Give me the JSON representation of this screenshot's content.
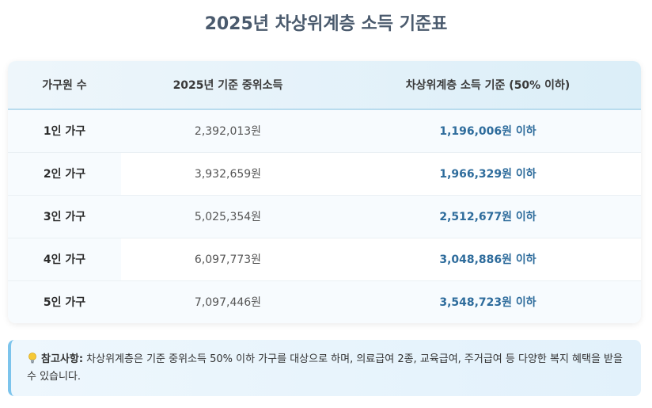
{
  "title": "2025년 차상위계층 소득 기준표",
  "table": {
    "headers": [
      "가구원 수",
      "2025년 기준 중위소득",
      "차상위계층 소득 기준 (50% 이하)"
    ],
    "rows": [
      {
        "household": "1인 가구",
        "median": "2,392,013원",
        "standard": "1,196,006원 이하"
      },
      {
        "household": "2인 가구",
        "median": "3,932,659원",
        "standard": "1,966,329원 이하"
      },
      {
        "household": "3인 가구",
        "median": "5,025,354원",
        "standard": "2,512,677원 이하"
      },
      {
        "household": "4인 가구",
        "median": "6,097,773원",
        "standard": "3,048,886원 이하"
      },
      {
        "household": "5인 가구",
        "median": "7,097,446원",
        "standard": "3,548,723원 이하"
      }
    ]
  },
  "note": {
    "icon": "lightbulb-icon",
    "label": "참고사항:",
    "text": " 차상위계층은 기준 중위소득 50% 이하 가구를 대상으로 하며, 의료급여 2종, 교육급여, 주거급여 등 다양한 복지 혜택을 받을 수 있습니다."
  },
  "colors": {
    "title": "#4a5a6d",
    "standard_value": "#2e6c9c",
    "note_border": "#7cc4ec"
  }
}
